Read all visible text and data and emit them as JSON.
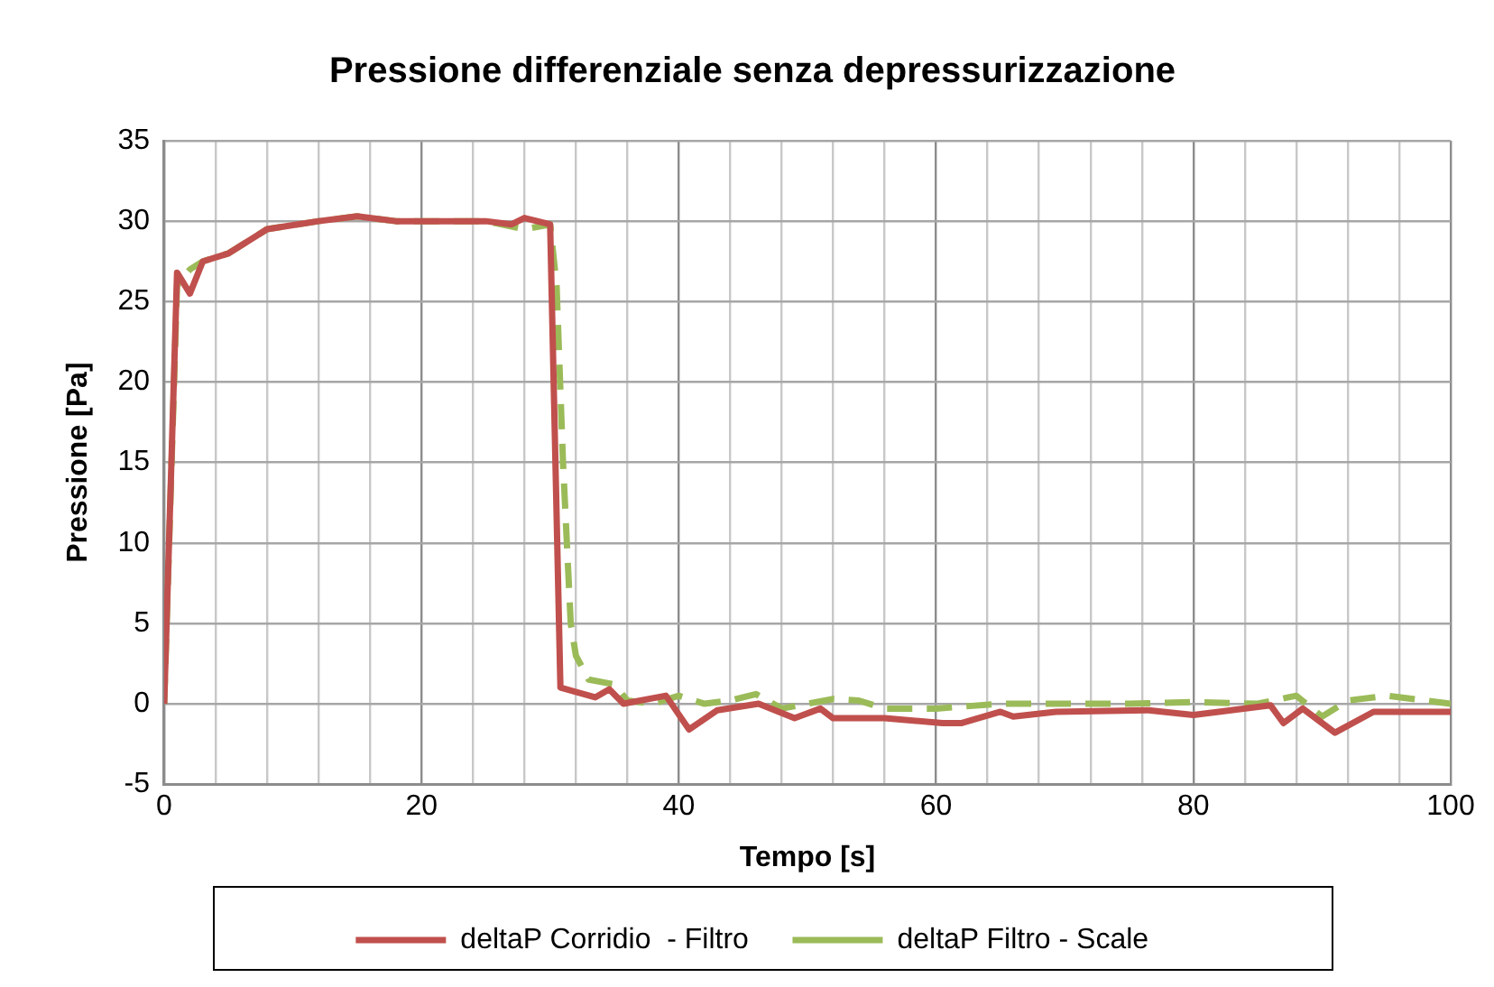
{
  "chart_data": {
    "type": "line",
    "title": "Pressione differenziale senza depressurizzazione",
    "xlabel": "Tempo [s]",
    "ylabel": "Pressione [Pa]",
    "xlim": [
      0,
      100
    ],
    "xticks": [
      0,
      {
        "value": 4,
        "label": null
      },
      {
        "value": 8,
        "label": null
      },
      {
        "value": 12,
        "label": null
      },
      {
        "value": 16,
        "label": null
      },
      20,
      {
        "value": 24,
        "label": null
      },
      {
        "value": 28,
        "label": null
      },
      {
        "value": 32,
        "label": null
      },
      {
        "value": 36,
        "label": null
      },
      40,
      {
        "value": 44,
        "label": null
      },
      {
        "value": 48,
        "label": null
      },
      {
        "value": 52,
        "label": null
      },
      {
        "value": 56,
        "label": null
      },
      60,
      {
        "value": 64,
        "label": null
      },
      {
        "value": 68,
        "label": null
      },
      {
        "value": 72,
        "label": null
      },
      {
        "value": 76,
        "label": null
      },
      80,
      {
        "value": 84,
        "label": null
      },
      {
        "value": 88,
        "label": null
      },
      {
        "value": 92,
        "label": null
      },
      {
        "value": 96,
        "label": null
      },
      100
    ],
    "ylim": [
      -5,
      35
    ],
    "yticks": [
      -5,
      0,
      5,
      10,
      15,
      20,
      25,
      30,
      35
    ],
    "grid": true,
    "legend": "bottom",
    "marker": "none",
    "series": [
      {
        "name": "deltaP Corridio  - Filtro",
        "color": "#c0504d",
        "line_style": "solid",
        "x": [
          0,
          1,
          2,
          3,
          5,
          8,
          12,
          15,
          18,
          22,
          25,
          27,
          28,
          30,
          30.8,
          33.5,
          34.6,
          35.7,
          39,
          40.8,
          43,
          46.2,
          49,
          51,
          52,
          56,
          60.5,
          62,
          65,
          66,
          69.3,
          76.5,
          80,
          86,
          87,
          88.5,
          91,
          94,
          100
        ],
        "values": [
          0,
          26.8,
          25.5,
          27.5,
          28,
          29.5,
          30,
          30.3,
          30,
          30,
          30,
          29.8,
          30.2,
          29.8,
          1,
          0.4,
          0.9,
          0,
          0.5,
          -1.6,
          -0.4,
          0,
          -0.9,
          -0.3,
          -0.9,
          -0.9,
          -1.2,
          -1.2,
          -0.5,
          -0.8,
          -0.5,
          -0.4,
          -0.7,
          -0.1,
          -1.2,
          -0.3,
          -1.8,
          -0.5,
          -0.5
        ]
      },
      {
        "name": "deltaP Filtro - Scale",
        "color": "#9bbb59",
        "line_style": "dashed",
        "x": [
          0,
          1,
          2,
          3,
          5,
          8,
          12,
          15,
          18,
          25,
          28,
          30,
          30.5,
          31,
          31.6,
          32,
          33,
          35,
          36,
          38,
          40,
          42,
          44,
          46,
          48,
          50,
          52,
          54,
          56,
          60,
          65,
          70,
          75,
          80,
          85,
          88,
          90,
          92,
          95,
          100
        ],
        "values": [
          0,
          26,
          27,
          27.5,
          28,
          29.5,
          30,
          30.3,
          30,
          30,
          29.5,
          29.8,
          26,
          15,
          5,
          3,
          1.5,
          1.2,
          0.2,
          0,
          0.5,
          0,
          0.2,
          0.6,
          -0.3,
          0,
          0.3,
          0.2,
          -0.3,
          -0.3,
          0,
          0,
          0,
          0.1,
          0,
          0.5,
          -0.8,
          0.2,
          0.5,
          0
        ]
      }
    ]
  }
}
